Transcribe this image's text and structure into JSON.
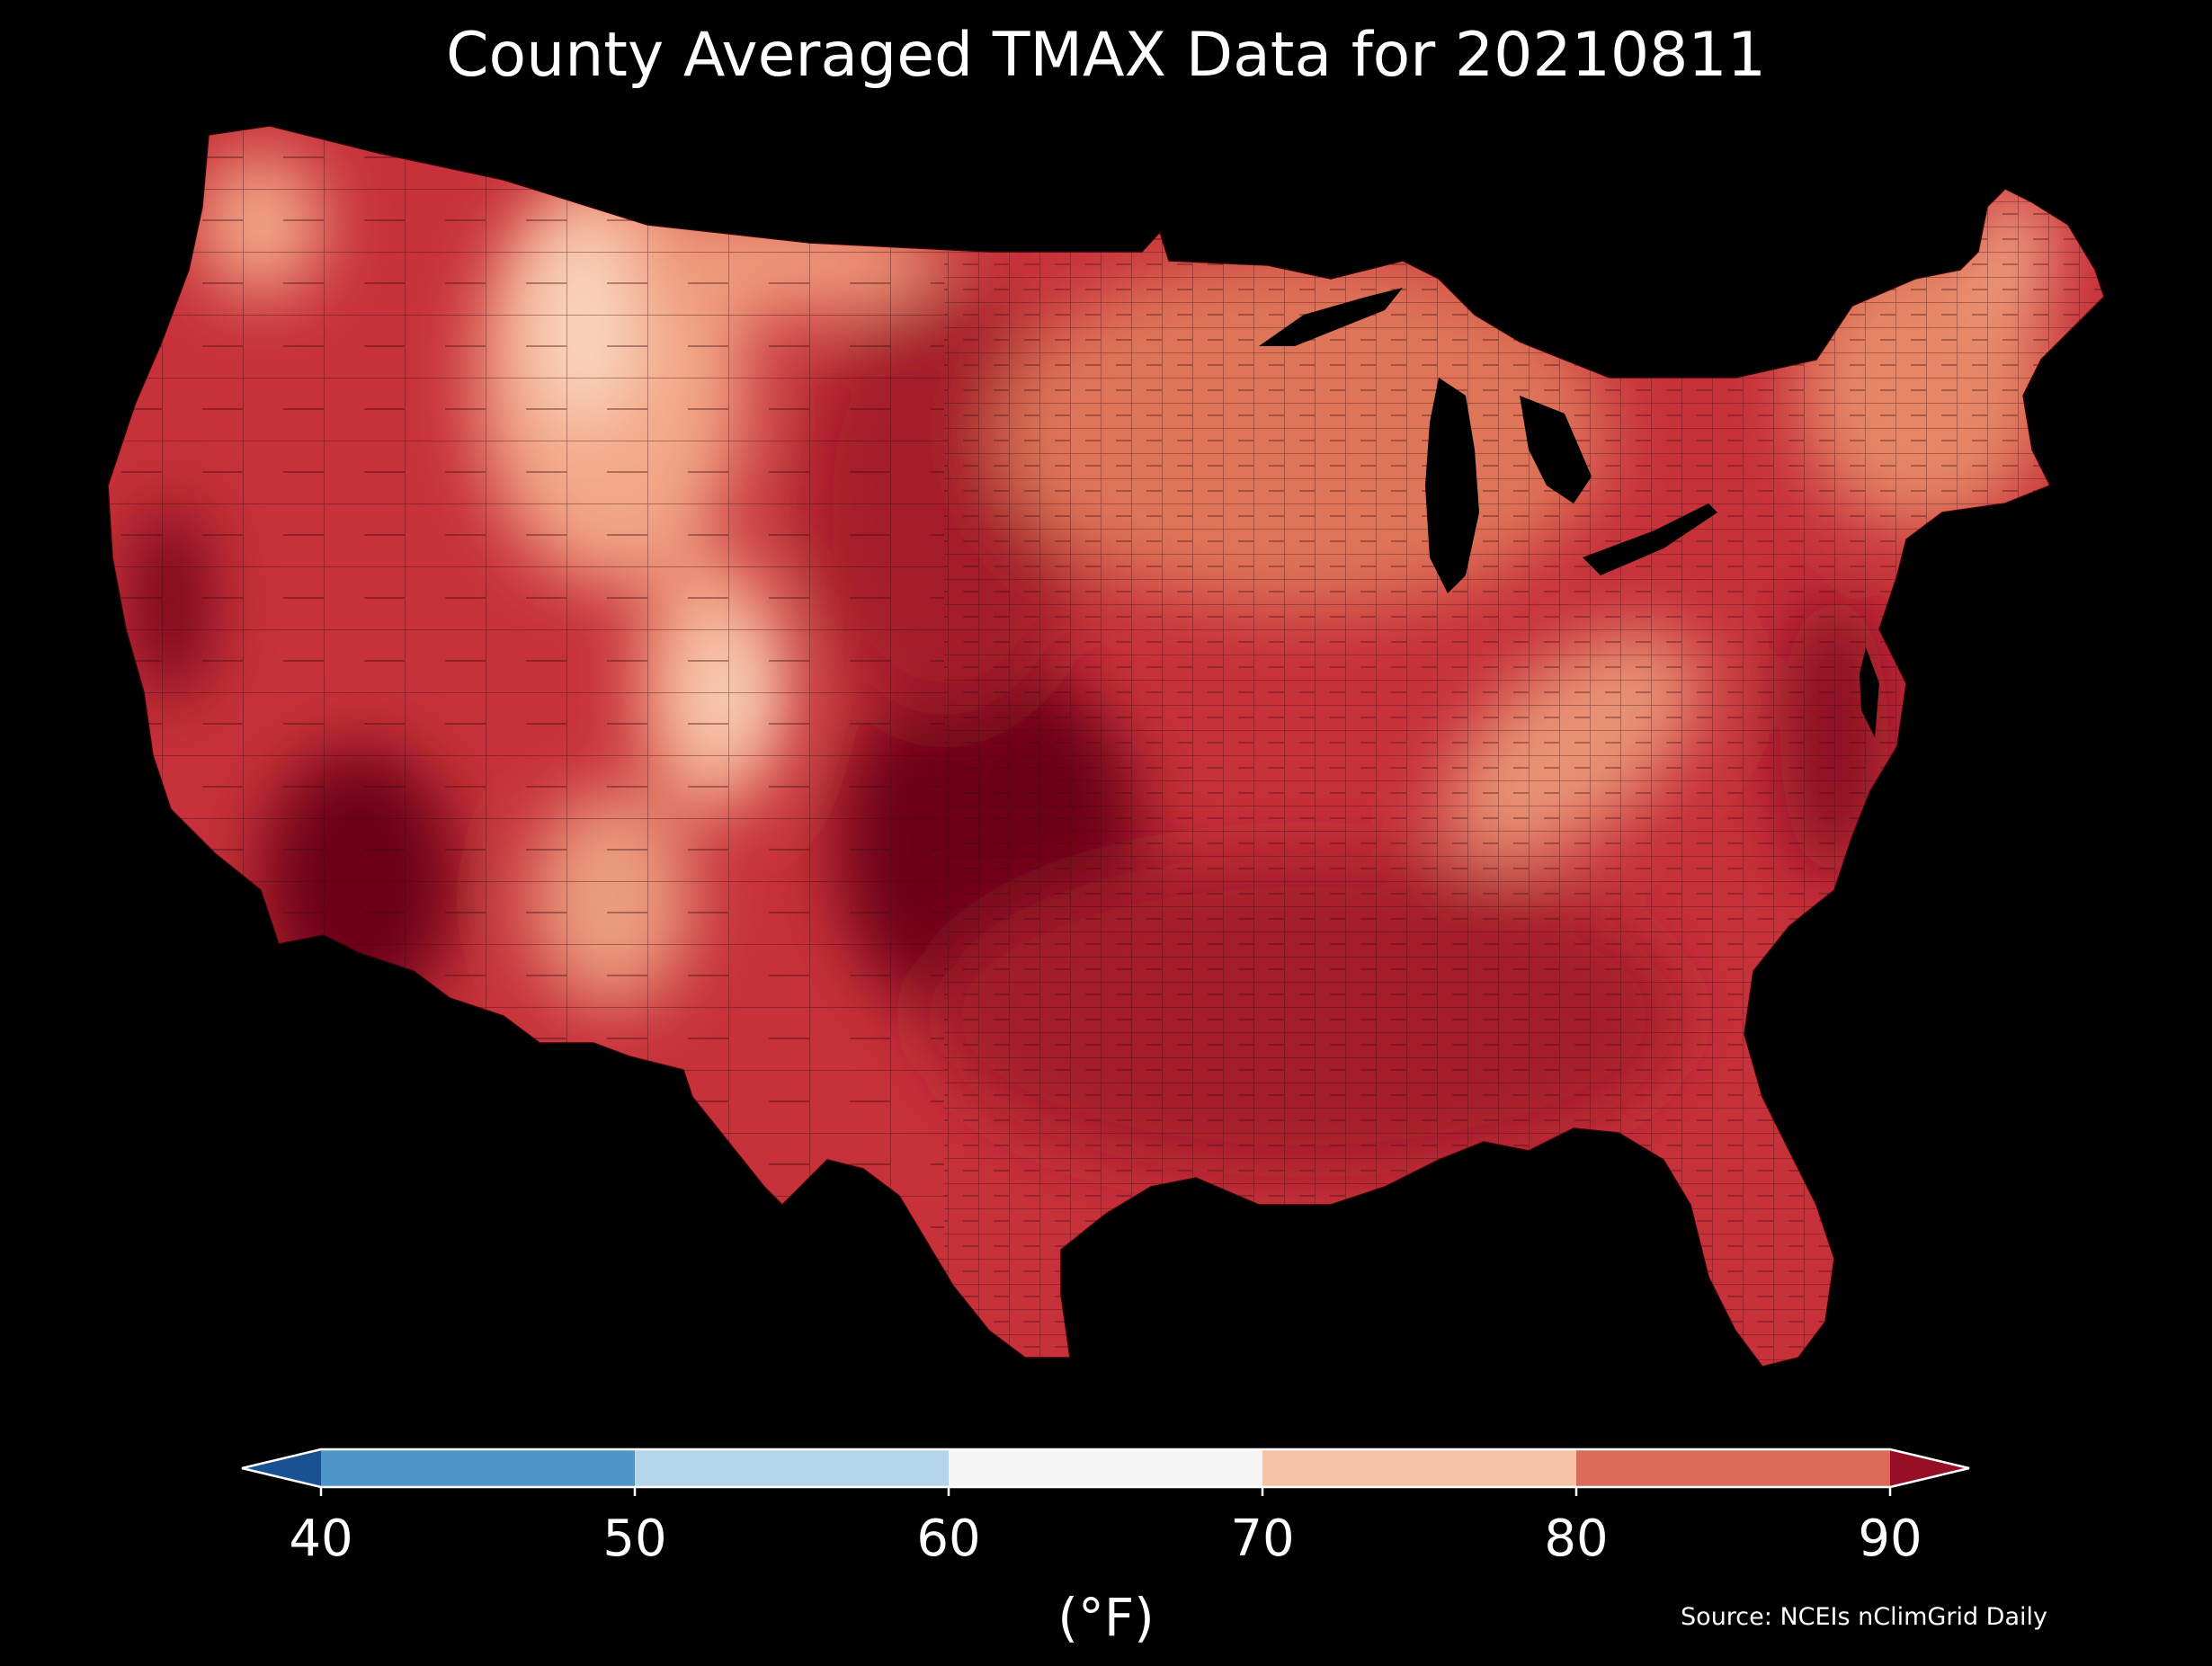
{
  "title": "County Averaged TMAX Data for 20210811",
  "colorbar": {
    "ticks": [
      "40",
      "50",
      "60",
      "70",
      "80",
      "90"
    ],
    "units": "(°F)",
    "bins": [
      {
        "range": "<40",
        "color": "#1a5193"
      },
      {
        "range": "40-50",
        "color": "#4d96c8"
      },
      {
        "range": "50-60",
        "color": "#b5d6ea"
      },
      {
        "range": "60-70",
        "color": "#f5f5f5"
      },
      {
        "range": "70-80",
        "color": "#f8c2a6"
      },
      {
        "range": "80-90",
        "color": "#dc6b57"
      },
      {
        "range": ">90",
        "color": "#960f24"
      }
    ]
  },
  "source": "Source: NCEIs nClimGrid Daily",
  "map_colors": {
    "hottest": "#6c0019",
    "hot": "#a51a2c",
    "warm": "#c7313a",
    "mild": "#de7559",
    "cool": "#f3a887",
    "coolest": "#fadcc8",
    "water": "#000000",
    "county_lines": "#3a0a0e"
  }
}
